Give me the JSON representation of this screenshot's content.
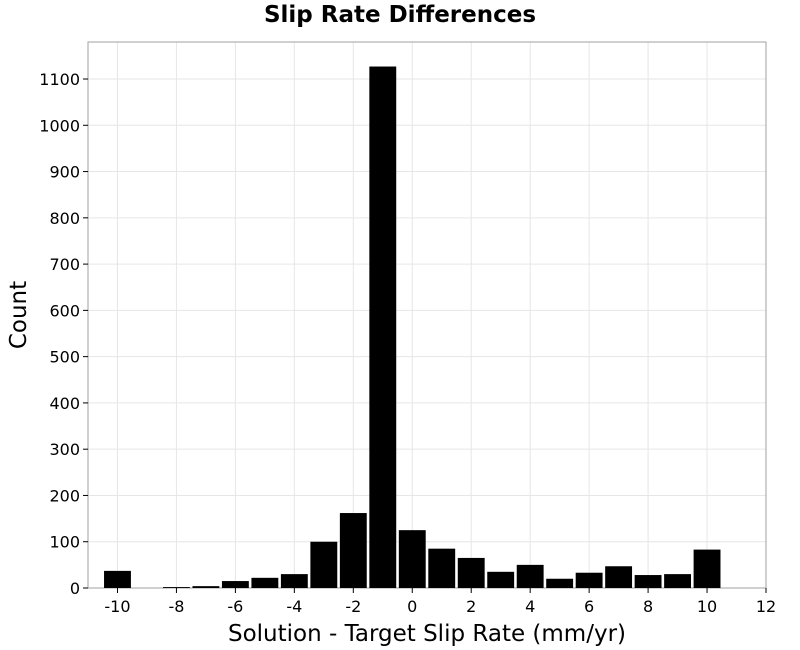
{
  "chart_data": {
    "type": "bar",
    "title": "Slip Rate Differences",
    "xlabel": "Solution - Target Slip Rate (mm/yr)",
    "ylabel": "Count",
    "xlim": [
      -11,
      12
    ],
    "ylim": [
      0,
      1180
    ],
    "xticks": [
      -10,
      -8,
      -6,
      -4,
      -2,
      0,
      2,
      4,
      6,
      8,
      10,
      12
    ],
    "yticks": [
      0,
      100,
      200,
      300,
      400,
      500,
      600,
      700,
      800,
      900,
      1000,
      1100
    ],
    "bin_width": 1,
    "x": [
      -10,
      -8,
      -7,
      -6,
      -5,
      -4,
      -3,
      -2,
      -1,
      0,
      1,
      2,
      3,
      4,
      5,
      6,
      7,
      8,
      9,
      10
    ],
    "values": [
      37,
      2,
      4,
      15,
      22,
      30,
      100,
      162,
      1127,
      125,
      85,
      65,
      35,
      50,
      20,
      33,
      47,
      28,
      30,
      83
    ],
    "grid": true,
    "bar_color": "#000000",
    "grid_color": "#e6e6e6"
  }
}
